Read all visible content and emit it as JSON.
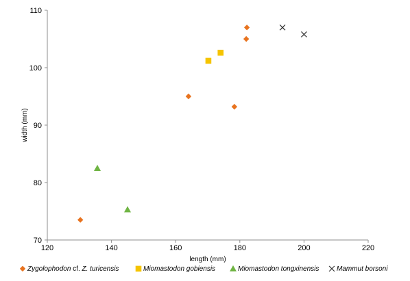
{
  "chart_data": {
    "type": "scatter",
    "title": "",
    "xlabel": "length (mm)",
    "ylabel": "width (mm)",
    "xlim": [
      120,
      220
    ],
    "ylim": [
      70,
      110
    ],
    "xticks": [
      "120",
      "140",
      "160",
      "180",
      "200",
      "220"
    ],
    "yticks": [
      "70",
      "80",
      "90",
      "100",
      "110"
    ],
    "grid": false,
    "legend_position": "bottom",
    "series": [
      {
        "name": "Zygolophodon cf. Z. turicensis",
        "legend_parts": [
          "Zygolophodon",
          " cf. ",
          "Z. turicensis"
        ],
        "marker": "diamond",
        "color": "#E8731F",
        "points": [
          {
            "x": 130.3,
            "y": 73.5
          },
          {
            "x": 164.0,
            "y": 95.0
          },
          {
            "x": 178.3,
            "y": 93.2
          },
          {
            "x": 182.0,
            "y": 105.0
          },
          {
            "x": 182.2,
            "y": 107.0
          }
        ]
      },
      {
        "name": "Miomastodon gobiensis",
        "legend_parts": [
          "Miomastodon gobiensis"
        ],
        "marker": "square",
        "color": "#F5C400",
        "points": [
          {
            "x": 170.2,
            "y": 101.2
          },
          {
            "x": 174.0,
            "y": 102.6
          }
        ]
      },
      {
        "name": "Miomastodon tongxinensis",
        "legend_parts": [
          "Miomastodon tongxinensis"
        ],
        "marker": "triangle",
        "color": "#6FB443",
        "points": [
          {
            "x": 135.6,
            "y": 82.5
          },
          {
            "x": 145.0,
            "y": 75.3
          }
        ]
      },
      {
        "name": "Mammut borsoni",
        "legend_parts": [
          "Mammut borsoni"
        ],
        "marker": "x",
        "color": "#333333",
        "points": [
          {
            "x": 193.3,
            "y": 107.0
          },
          {
            "x": 200.0,
            "y": 105.8
          }
        ]
      }
    ]
  }
}
